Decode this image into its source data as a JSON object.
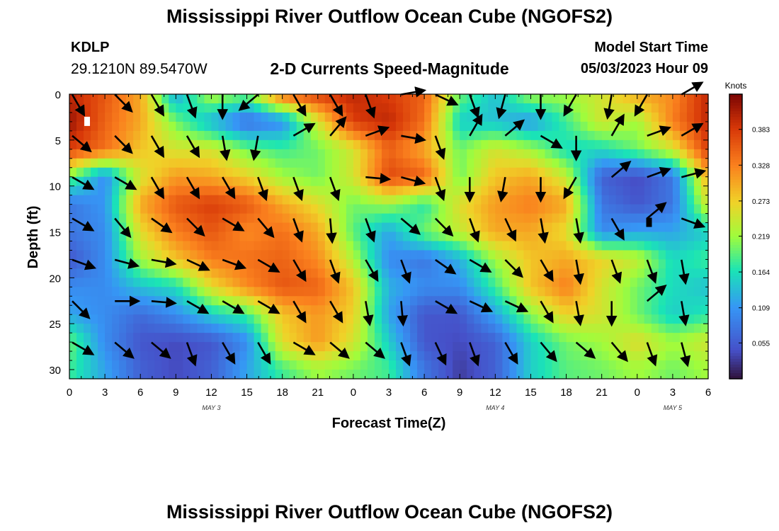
{
  "header": {
    "title": "Mississippi River Outflow Ocean Cube (NGOFS2)",
    "station_id": "KDLP",
    "station_coords": "29.1210N  89.5470W",
    "subtitle": "2-D Currents Speed-Magnitude",
    "model_label": "Model Start Time",
    "model_time": "05/03/2023 Hour 09"
  },
  "footer": {
    "title": "Mississippi River Outflow Ocean Cube (NGOFS2)"
  },
  "chart_data": {
    "type": "heatmap",
    "xlabel": "Forecast Time(Z)",
    "ylabel": "Depth (ft)",
    "x_tick_labels": [
      "0",
      "3",
      "6",
      "9",
      "12",
      "15",
      "18",
      "21",
      "0",
      "3",
      "6",
      "9",
      "12",
      "15",
      "18",
      "21",
      "0",
      "3",
      "6"
    ],
    "x_range_hours": [
      0,
      54
    ],
    "date_labels": [
      {
        "text": "MAY 3",
        "hour": 12
      },
      {
        "text": "MAY 4",
        "hour": 36
      },
      {
        "text": "MAY 5",
        "hour": 51
      }
    ],
    "y_tick_labels": [
      "0",
      "5",
      "10",
      "15",
      "20",
      "25",
      "30"
    ],
    "y_range": [
      0,
      31
    ],
    "y_inverted": true,
    "colorbar": {
      "label": "Knots",
      "ticks": [
        "0.383",
        "0.328",
        "0.273",
        "0.219",
        "0.164",
        "0.109",
        "0.055"
      ],
      "range": [
        0.0,
        0.437
      ]
    },
    "grid_hours": [
      0,
      3,
      6,
      9,
      12,
      15,
      18,
      21,
      24,
      27,
      30,
      33,
      36,
      39,
      42,
      45,
      48,
      51,
      54
    ],
    "grid_depths": [
      0,
      3,
      6,
      9,
      12,
      15,
      18,
      21,
      24,
      27,
      30
    ],
    "speed_grid": [
      [
        0.4,
        0.36,
        0.3,
        0.12,
        0.23,
        0.2,
        0.35,
        0.38,
        0.4,
        0.38,
        0.35,
        0.2,
        0.14,
        0.22,
        0.22,
        0.25,
        0.3,
        0.32,
        0.4
      ],
      [
        0.42,
        0.35,
        0.3,
        0.2,
        0.13,
        0.07,
        0.1,
        0.25,
        0.38,
        0.4,
        0.34,
        0.15,
        0.14,
        0.11,
        0.18,
        0.25,
        0.22,
        0.33,
        0.4
      ],
      [
        0.38,
        0.34,
        0.28,
        0.25,
        0.25,
        0.2,
        0.18,
        0.2,
        0.25,
        0.35,
        0.3,
        0.2,
        0.25,
        0.22,
        0.16,
        0.16,
        0.2,
        0.25,
        0.38
      ],
      [
        0.2,
        0.1,
        0.25,
        0.31,
        0.3,
        0.27,
        0.22,
        0.2,
        0.25,
        0.37,
        0.35,
        0.2,
        0.28,
        0.3,
        0.24,
        0.06,
        0.04,
        0.08,
        0.3
      ],
      [
        0.08,
        0.11,
        0.3,
        0.36,
        0.38,
        0.36,
        0.3,
        0.26,
        0.2,
        0.22,
        0.17,
        0.26,
        0.31,
        0.33,
        0.3,
        0.08,
        0.05,
        0.08,
        0.25
      ],
      [
        0.08,
        0.1,
        0.26,
        0.33,
        0.36,
        0.32,
        0.34,
        0.3,
        0.19,
        0.12,
        0.2,
        0.24,
        0.3,
        0.3,
        0.26,
        0.1,
        0.12,
        0.12,
        0.15
      ],
      [
        0.05,
        0.1,
        0.22,
        0.28,
        0.33,
        0.34,
        0.35,
        0.32,
        0.23,
        0.1,
        0.08,
        0.13,
        0.22,
        0.28,
        0.3,
        0.27,
        0.24,
        0.16,
        0.18
      ],
      [
        0.1,
        0.1,
        0.14,
        0.16,
        0.26,
        0.32,
        0.36,
        0.35,
        0.28,
        0.13,
        0.1,
        0.1,
        0.18,
        0.28,
        0.33,
        0.25,
        0.2,
        0.16,
        0.14
      ],
      [
        0.12,
        0.1,
        0.07,
        0.1,
        0.15,
        0.18,
        0.28,
        0.31,
        0.27,
        0.12,
        0.05,
        0.05,
        0.12,
        0.21,
        0.27,
        0.25,
        0.2,
        0.15,
        0.17
      ],
      [
        0.2,
        0.1,
        0.05,
        0.04,
        0.05,
        0.1,
        0.26,
        0.31,
        0.25,
        0.15,
        0.05,
        0.04,
        0.06,
        0.15,
        0.2,
        0.22,
        0.26,
        0.22,
        0.25
      ],
      [
        0.18,
        0.12,
        0.06,
        0.04,
        0.06,
        0.12,
        0.18,
        0.22,
        0.2,
        0.18,
        0.08,
        0.03,
        0.06,
        0.15,
        0.19,
        0.2,
        0.22,
        0.2,
        0.22
      ]
    ],
    "arrow_hours": [
      0.6,
      4.2,
      7.3,
      10.3,
      13.3,
      16.3,
      19.3,
      22.4,
      25.4,
      28.4,
      31.3,
      34.2,
      37.2,
      40.2,
      43.2,
      46.2,
      49.2,
      52.1
    ],
    "arrow_depths": [
      0.5,
      5,
      9.5,
      14,
      18.5,
      23,
      27.5
    ],
    "arrow_angles_deg": [
      [
        300,
        315,
        300,
        290,
        270,
        220,
        300,
        300,
        290,
        10,
        335,
        290,
        255,
        270,
        240,
        260,
        240,
        30
      ],
      [
        320,
        315,
        300,
        300,
        280,
        260,
        30,
        50,
        20,
        350,
        290,
        60,
        40,
        330,
        270,
        60,
        20,
        30
      ],
      [
        330,
        330,
        300,
        300,
        300,
        290,
        290,
        290,
        355,
        345,
        290,
        270,
        260,
        270,
        240,
        40,
        20,
        15
      ],
      [
        330,
        310,
        325,
        315,
        330,
        310,
        290,
        275,
        290,
        320,
        315,
        290,
        295,
        280,
        280,
        300,
        40,
        340
      ],
      [
        340,
        345,
        350,
        335,
        340,
        330,
        300,
        290,
        300,
        290,
        325,
        330,
        315,
        300,
        280,
        290,
        290,
        280
      ],
      [
        315,
        0,
        355,
        330,
        330,
        330,
        300,
        300,
        280,
        275,
        330,
        335,
        335,
        300,
        280,
        270,
        40,
        280
      ],
      [
        330,
        320,
        320,
        290,
        300,
        300,
        330,
        320,
        320,
        290,
        295,
        290,
        300,
        310,
        320,
        310,
        290,
        285
      ]
    ],
    "markers": [
      {
        "hour": 1.5,
        "depth": 3,
        "color": "#ffffff"
      },
      {
        "hour": 49,
        "depth": 14,
        "color": "#000000"
      }
    ]
  }
}
